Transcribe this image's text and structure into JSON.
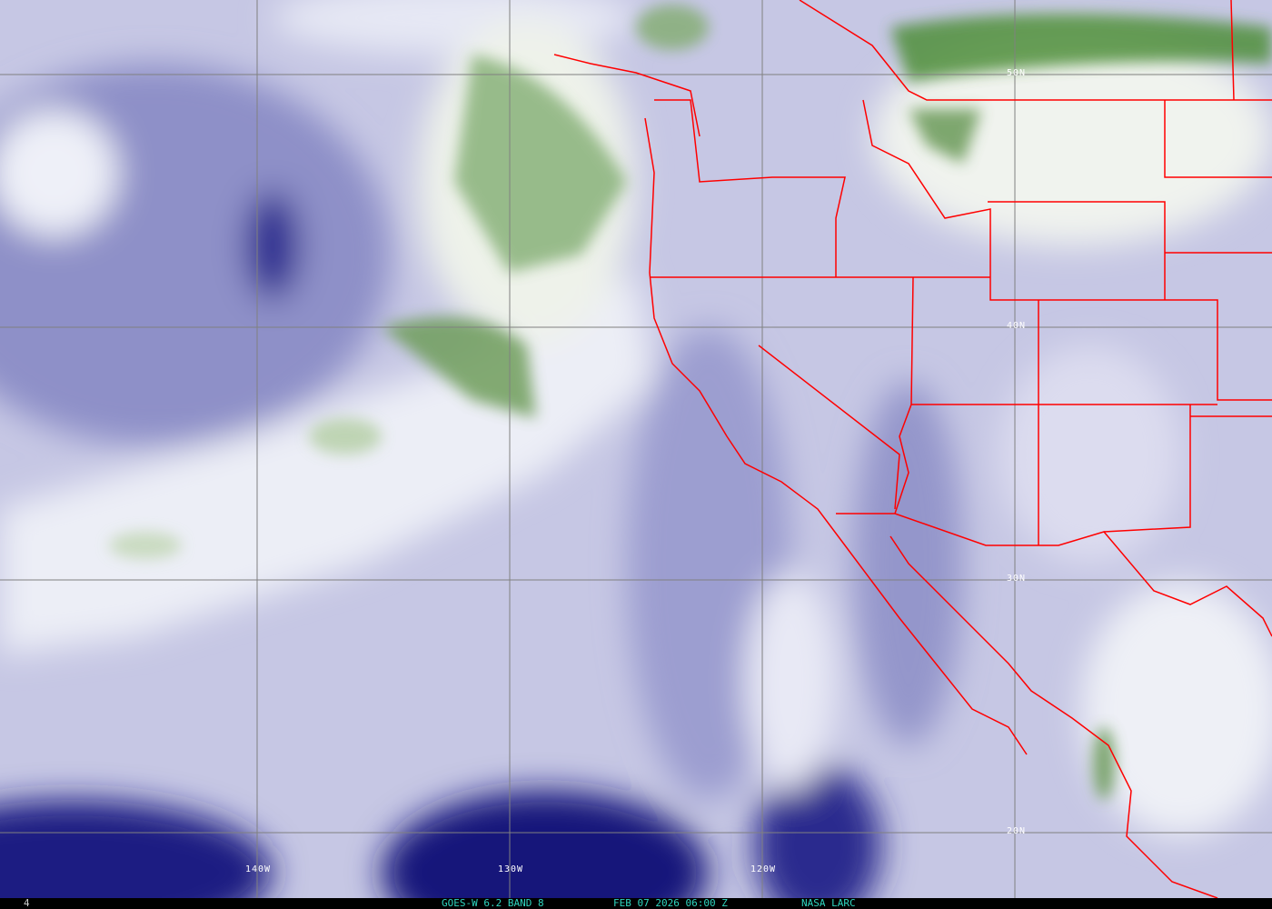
{
  "image": {
    "product": "GOES-W 6.2 BAND 8",
    "datetime": "FEB 07 2026 06:00 Z",
    "source": "NASA LARC",
    "frame_indicator": "4"
  },
  "grid": {
    "latitude_labels": [
      "50N",
      "40N",
      "30N",
      "20N"
    ],
    "longitude_labels": [
      "140W",
      "130W",
      "120W"
    ]
  },
  "colors": {
    "dry": "#1a1a80",
    "moderate": "#b8b9dd",
    "moist": "#f2f3f8",
    "very_moist": "#4f8f3a",
    "borders": "#ff0000",
    "grid": "#808080",
    "caption": "#2fd6c0"
  }
}
